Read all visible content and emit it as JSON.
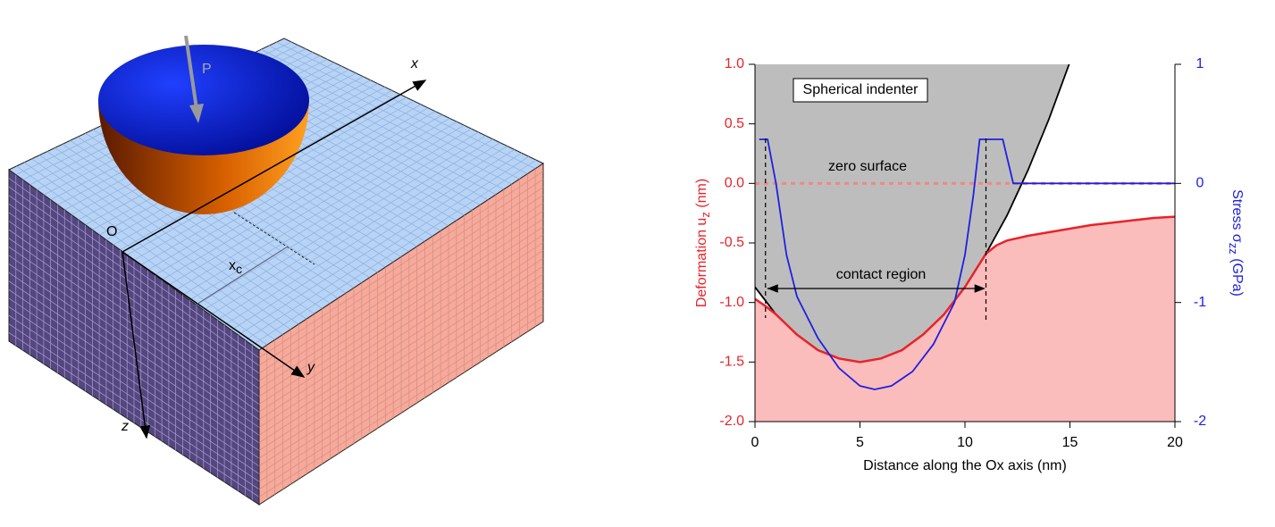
{
  "diagram": {
    "labels": {
      "force": "P",
      "x_axis": "x",
      "y_axis": "y",
      "z_axis": "z",
      "origin": "O",
      "contact_x": "x",
      "contact_x_sub": "c"
    }
  },
  "chart_data": {
    "type": "line",
    "xlabel": "Distance along the Ox axis (nm)",
    "ylabel": [
      "Deformation u",
      "z",
      " (nm)"
    ],
    "y2label": [
      "Stress σ",
      "zz",
      " (GPa)"
    ],
    "xlim": [
      0,
      20
    ],
    "xticks": [
      0,
      5,
      10,
      15,
      20
    ],
    "ylim": [
      -2,
      1
    ],
    "yticks": [
      {
        "value": 1,
        "label": "1.0"
      },
      {
        "value": 0.5,
        "label": "0.5"
      },
      {
        "value": 0,
        "label": "0.0"
      },
      {
        "value": -0.5,
        "label": "-0.5"
      },
      {
        "value": -1,
        "label": "-1.0"
      },
      {
        "value": -1.5,
        "label": "-1.5"
      },
      {
        "value": -2,
        "label": "-2.0"
      }
    ],
    "y2lim": [
      -2,
      1
    ],
    "y2ticks": [
      1,
      0,
      -1,
      -2
    ],
    "series": [
      {
        "name": "Spherical indenter",
        "color": "#000000",
        "fill": "#bdbdbd",
        "fill_to": "top",
        "x": [
          0,
          1,
          2,
          3,
          4,
          5,
          6,
          7,
          8,
          9,
          10,
          11,
          12,
          13,
          14,
          15
        ],
        "values": [
          -0.87,
          -1.1,
          -1.27,
          -1.4,
          -1.47,
          -1.5,
          -1.47,
          -1.4,
          -1.27,
          -1.1,
          -0.87,
          -0.59,
          -0.27,
          0.11,
          0.54,
          1.02
        ]
      },
      {
        "name": "Deformation",
        "color": "#e8232a",
        "fill": "#fbbcbc",
        "fill_to": "bottom",
        "x": [
          0,
          0.5,
          1,
          2,
          3,
          4,
          5,
          6,
          7,
          8,
          9,
          10,
          11,
          11.5,
          12,
          13,
          14,
          15,
          16,
          17,
          18,
          19,
          20
        ],
        "values": [
          -0.97,
          -1.03,
          -1.1,
          -1.27,
          -1.4,
          -1.47,
          -1.5,
          -1.47,
          -1.4,
          -1.27,
          -1.1,
          -0.87,
          -0.59,
          -0.52,
          -0.48,
          -0.44,
          -0.41,
          -0.38,
          -0.35,
          -0.33,
          -0.31,
          -0.29,
          -0.28
        ]
      },
      {
        "name": "Stress",
        "color": "#2020e0",
        "axis": "y2",
        "x": [
          0.2,
          0.6,
          1,
          1.5,
          2,
          3,
          4,
          5,
          5.7,
          6.5,
          7.5,
          8.5,
          9.5,
          10,
          10.4,
          10.7,
          11.8,
          12.3,
          20
        ],
        "values": [
          0.37,
          0.37,
          0,
          -0.6,
          -0.95,
          -1.3,
          -1.55,
          -1.7,
          -1.73,
          -1.7,
          -1.58,
          -1.35,
          -1.0,
          -0.6,
          -0.1,
          0.37,
          0.37,
          0,
          0
        ]
      }
    ],
    "reference_line": {
      "value": 0,
      "label": "zero surface",
      "color": "#f4877f"
    },
    "contact_region": {
      "label": "contact region",
      "x": [
        0.5,
        11
      ]
    },
    "annotation": "Spherical indenter"
  }
}
